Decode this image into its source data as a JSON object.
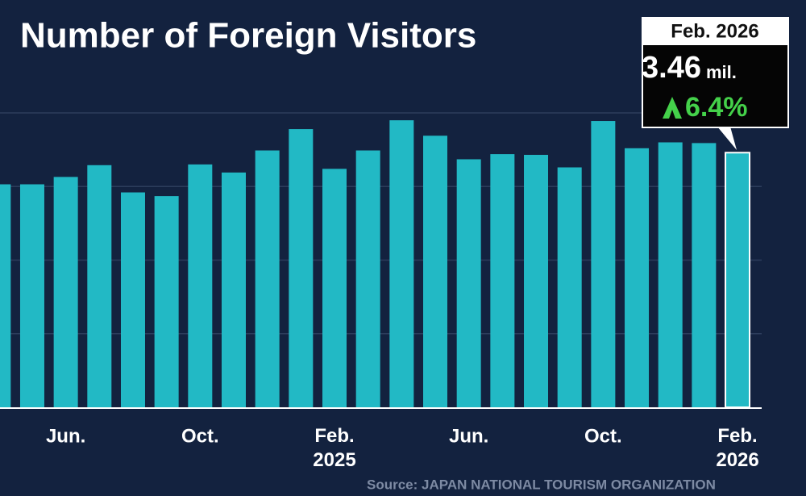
{
  "chart_data": {
    "type": "bar",
    "title": "Number of Foreign Visitors",
    "categories": [
      null,
      null,
      "Jun.",
      null,
      null,
      null,
      "Oct.",
      null,
      null,
      null,
      "Feb. 2025",
      null,
      null,
      null,
      "Jun.",
      null,
      null,
      null,
      "Oct.",
      null,
      null,
      null,
      "Feb. 2026"
    ],
    "values": [
      3.03,
      3.03,
      3.13,
      3.29,
      2.92,
      2.87,
      3.3,
      3.19,
      3.49,
      3.78,
      3.24,
      3.49,
      3.9,
      3.69,
      3.37,
      3.44,
      3.43,
      3.26,
      3.89,
      3.52,
      3.6,
      3.59,
      3.46
    ],
    "color": "#22b9c5",
    "ylim": [
      0,
      4
    ],
    "yticks": [
      1,
      2,
      3,
      4
    ],
    "grid": true,
    "callout": {
      "label": "Feb. 2026",
      "value": "3.46",
      "unit": "mil.",
      "change": "6.4%"
    },
    "source": "Source: JAPAN NATIONAL TOURISM ORGANIZATION"
  }
}
